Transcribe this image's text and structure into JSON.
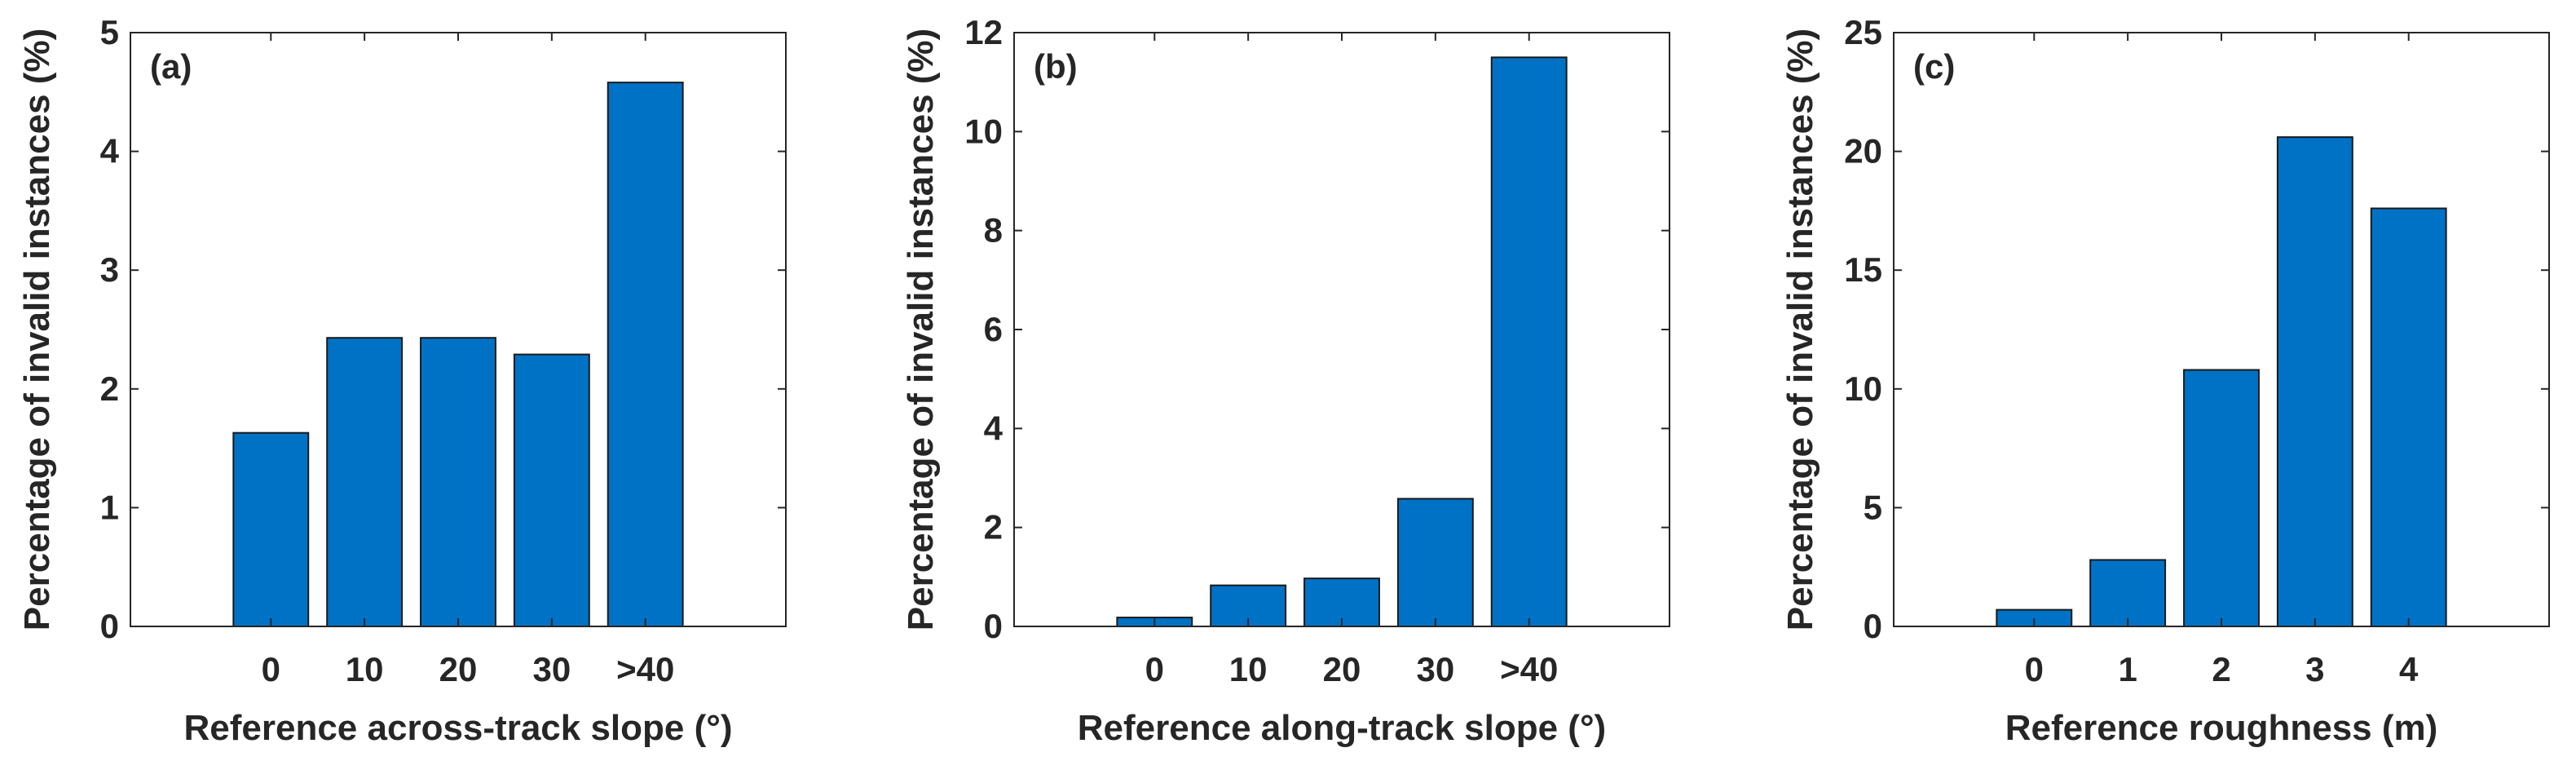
{
  "chart_data": [
    {
      "type": "bar",
      "panel_label": "(a)",
      "categories": [
        "0",
        "10",
        "20",
        "30",
        ">40"
      ],
      "values": [
        1.63,
        2.43,
        2.43,
        2.29,
        4.58
      ],
      "xlabel": "Reference across-track slope (°)",
      "ylabel": "Percentage of invalid instances (%)",
      "ylim": [
        0,
        5
      ],
      "yticks": [
        "0",
        "1",
        "2",
        "3",
        "4",
        "5"
      ],
      "bar_color": "#0072C6",
      "grid": false
    },
    {
      "type": "bar",
      "panel_label": "(b)",
      "categories": [
        "0",
        "10",
        "20",
        "30",
        ">40"
      ],
      "values": [
        0.18,
        0.83,
        0.97,
        2.58,
        11.5
      ],
      "xlabel": "Reference along-track slope (°)",
      "ylabel": "Percentage of invalid instances (%)",
      "ylim": [
        0,
        12
      ],
      "yticks": [
        "0",
        "2",
        "4",
        "6",
        "8",
        "10",
        "12"
      ],
      "bar_color": "#0072C6",
      "grid": false
    },
    {
      "type": "bar",
      "panel_label": "(c)",
      "categories": [
        "0",
        "1",
        "2",
        "3",
        "4"
      ],
      "values": [
        0.7,
        2.8,
        10.8,
        20.6,
        17.6
      ],
      "xlabel": "Reference roughness (m)",
      "ylabel": "Percentage of invalid instances (%)",
      "ylim": [
        0,
        25
      ],
      "yticks": [
        "0",
        "5",
        "10",
        "15",
        "20",
        "25"
      ],
      "bar_color": "#0072C6",
      "grid": false
    }
  ]
}
